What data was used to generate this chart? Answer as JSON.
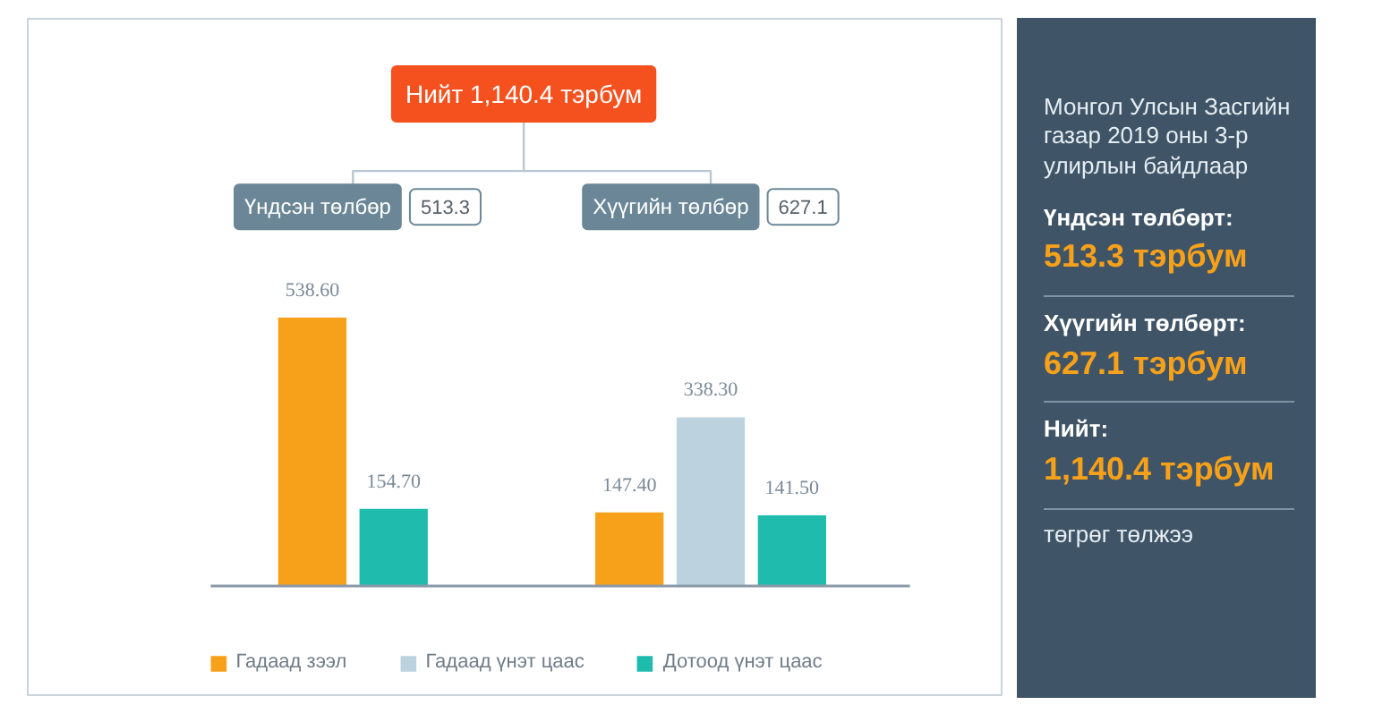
{
  "chart_data": [
    {
      "type": "bar",
      "title": "Нийт 1,140.4 тэрбум",
      "categories": [
        "Үндсэн төлбөр",
        "Хүүгийн төлбөр"
      ],
      "annotations": [
        "513.3",
        "627.1"
      ],
      "series": [
        {
          "name": "Гадаад зээл",
          "color": "#f7a11a",
          "values": [
            538.6,
            147.4
          ],
          "value_labels": [
            "538.60",
            "147.40"
          ]
        },
        {
          "name": "Гадаад үнэт цаас",
          "color": "#bcd3df",
          "values": [
            null,
            338.3
          ],
          "value_labels": [
            null,
            "338.30"
          ]
        },
        {
          "name": "Дотоод үнэт цаас",
          "color": "#1fbcae",
          "values": [
            154.7,
            141.5
          ],
          "value_labels": [
            "154.70",
            "141.50"
          ]
        }
      ],
      "legend": "bottom",
      "grid": false
    },
    {
      "type": "other",
      "annotations": [
        "Монгол Улсын Засгийн газар 2019 оны 3-р улирлын байдлаар",
        "Үндсэн төлбөрт:",
        "513.3 тэрбум",
        "Хүүгийн төлбөрт:",
        "627.1 тэрбум",
        "Нийт:",
        "1,140.4 тэрбум",
        "төгрөг төлжээ"
      ]
    }
  ]
}
